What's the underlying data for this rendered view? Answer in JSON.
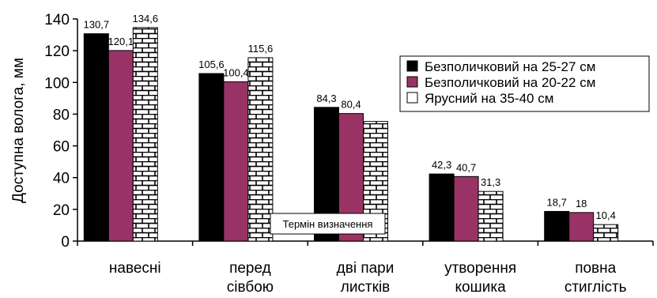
{
  "chart_data": {
    "type": "bar",
    "ylabel": "Доступна волога, мм",
    "xlabel": "Термін визначення",
    "ylim": [
      0,
      140
    ],
    "yticks": [
      0,
      20,
      40,
      60,
      80,
      100,
      120,
      140
    ],
    "grid": false,
    "legend_position": "top-right",
    "categories": [
      [
        "навесні"
      ],
      [
        "перед",
        "сівбою"
      ],
      [
        "дві пари",
        "листків"
      ],
      [
        "утворення",
        "кошика"
      ],
      [
        "повна",
        "стиглість"
      ]
    ],
    "series": [
      {
        "name": "Безполичковий на 25-27 см",
        "values": [
          130.7,
          105.6,
          84.3,
          42.3,
          18.7
        ],
        "labels": [
          "130,7",
          "105,6",
          "84,3",
          "42,3",
          "18,7"
        ],
        "color": "#000000",
        "pattern": "solid"
      },
      {
        "name": "Безполичковий на 20-22 см",
        "values": [
          120.1,
          100.4,
          80.4,
          40.7,
          18
        ],
        "labels": [
          "120,1",
          "100,4",
          "80,4",
          "40,7",
          "18"
        ],
        "color": "#993366",
        "pattern": "solid"
      },
      {
        "name": "Ярусний на 35-40 см",
        "values": [
          134.6,
          115.6,
          75.4,
          31.3,
          10.4
        ],
        "labels": [
          "134,6",
          "115,6",
          "",
          "31,3",
          "10,4"
        ],
        "color": "#ffffff",
        "pattern": "brick"
      }
    ]
  }
}
